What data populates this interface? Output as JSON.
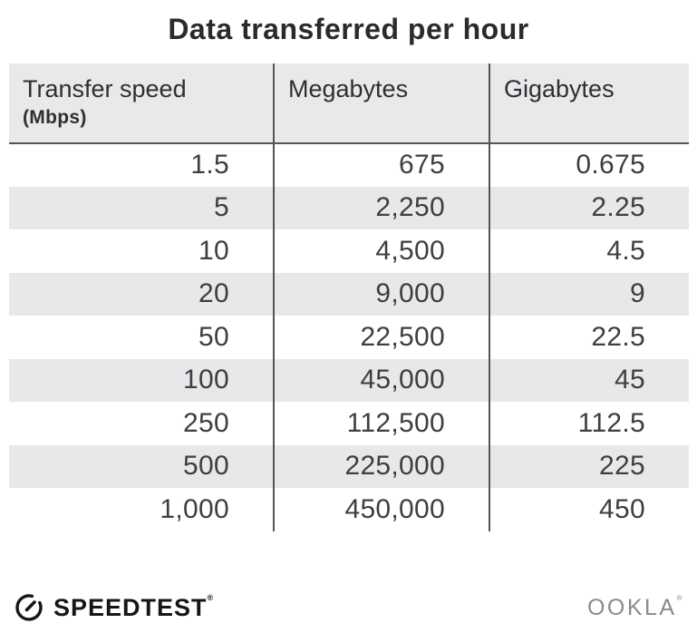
{
  "title": "Data transferred per hour",
  "table": {
    "columns": [
      {
        "label": "Transfer speed",
        "sublabel": "(Mbps)"
      },
      {
        "label": "Megabytes",
        "sublabel": ""
      },
      {
        "label": "Gigabytes",
        "sublabel": ""
      }
    ],
    "rows": [
      [
        "1.5",
        "675",
        "0.675"
      ],
      [
        "5",
        "2,250",
        "2.25"
      ],
      [
        "10",
        "4,500",
        "4.5"
      ],
      [
        "20",
        "9,000",
        "9"
      ],
      [
        "50",
        "22,500",
        "22.5"
      ],
      [
        "100",
        "45,000",
        "45"
      ],
      [
        "250",
        "112,500",
        "112.5"
      ],
      [
        "500",
        "225,000",
        "225"
      ],
      [
        "1,000",
        "450,000",
        "450"
      ]
    ]
  },
  "chart_data": {
    "type": "table",
    "title": "Data transferred per hour",
    "columns": [
      "Transfer speed (Mbps)",
      "Megabytes",
      "Gigabytes"
    ],
    "rows": [
      [
        1.5,
        675,
        0.675
      ],
      [
        5,
        2250,
        2.25
      ],
      [
        10,
        4500,
        4.5
      ],
      [
        20,
        9000,
        9
      ],
      [
        50,
        22500,
        22.5
      ],
      [
        100,
        45000,
        45
      ],
      [
        250,
        112500,
        112.5
      ],
      [
        500,
        225000,
        225
      ],
      [
        1000,
        450000,
        450
      ]
    ]
  },
  "footer": {
    "speedtest_label": "SPEEDTEST",
    "speedtest_mark": "®",
    "ookla_label": "OOKLA",
    "ookla_mark": "®"
  },
  "colors": {
    "header_bg": "#e9e9ec",
    "stripe_bg": "#e8e8eb",
    "divider": "#545457",
    "title_text": "#2b2b2b",
    "body_text": "#3e3e41",
    "ookla_gray": "#8a8a8a"
  }
}
